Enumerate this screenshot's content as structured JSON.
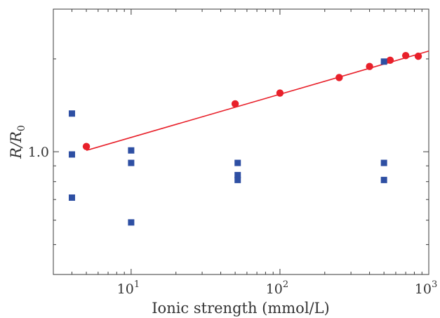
{
  "chart_data": {
    "type": "scatter",
    "title": "",
    "xlabel": "Ionic strength (mmol/L)",
    "ylabel": "R/R0",
    "ylabel_parts": {
      "main": "R/R",
      "subscript": "0"
    },
    "x_scale": "log",
    "y_scale": "log",
    "xlim": [
      3,
      1000
    ],
    "ylim": [
      0.4,
      2.9
    ],
    "x_ticks": [
      {
        "value": 10,
        "label_base": "10",
        "label_exp": "1"
      },
      {
        "value": 100,
        "label_base": "10",
        "label_exp": "2"
      },
      {
        "value": 1000,
        "label_base": "10",
        "label_exp": "3"
      }
    ],
    "y_ticks": [
      {
        "value": 1.0,
        "label": "1.0"
      }
    ],
    "grid": false,
    "series": [
      {
        "marker": "circle",
        "color": "#e8202a",
        "points": [
          {
            "x": 5,
            "y": 1.04
          },
          {
            "x": 50,
            "y": 1.43
          },
          {
            "x": 100,
            "y": 1.55
          },
          {
            "x": 250,
            "y": 1.74
          },
          {
            "x": 400,
            "y": 1.89
          },
          {
            "x": 550,
            "y": 1.98
          },
          {
            "x": 700,
            "y": 2.05
          },
          {
            "x": 850,
            "y": 2.04
          }
        ]
      },
      {
        "marker": "square",
        "color": "#2e4fa3",
        "points": [
          {
            "x": 4,
            "y": 1.33
          },
          {
            "x": 4,
            "y": 0.98
          },
          {
            "x": 4,
            "y": 0.71
          },
          {
            "x": 10,
            "y": 1.01
          },
          {
            "x": 10,
            "y": 0.92
          },
          {
            "x": 10,
            "y": 0.59
          },
          {
            "x": 52,
            "y": 0.92
          },
          {
            "x": 52,
            "y": 0.84
          },
          {
            "x": 52,
            "y": 0.81
          },
          {
            "x": 500,
            "y": 1.96
          },
          {
            "x": 500,
            "y": 0.92
          },
          {
            "x": 500,
            "y": 0.81
          }
        ]
      }
    ],
    "fit_line": {
      "color": "#e8202a",
      "x": [
        5,
        1000
      ],
      "y": [
        1.01,
        2.12
      ]
    }
  }
}
